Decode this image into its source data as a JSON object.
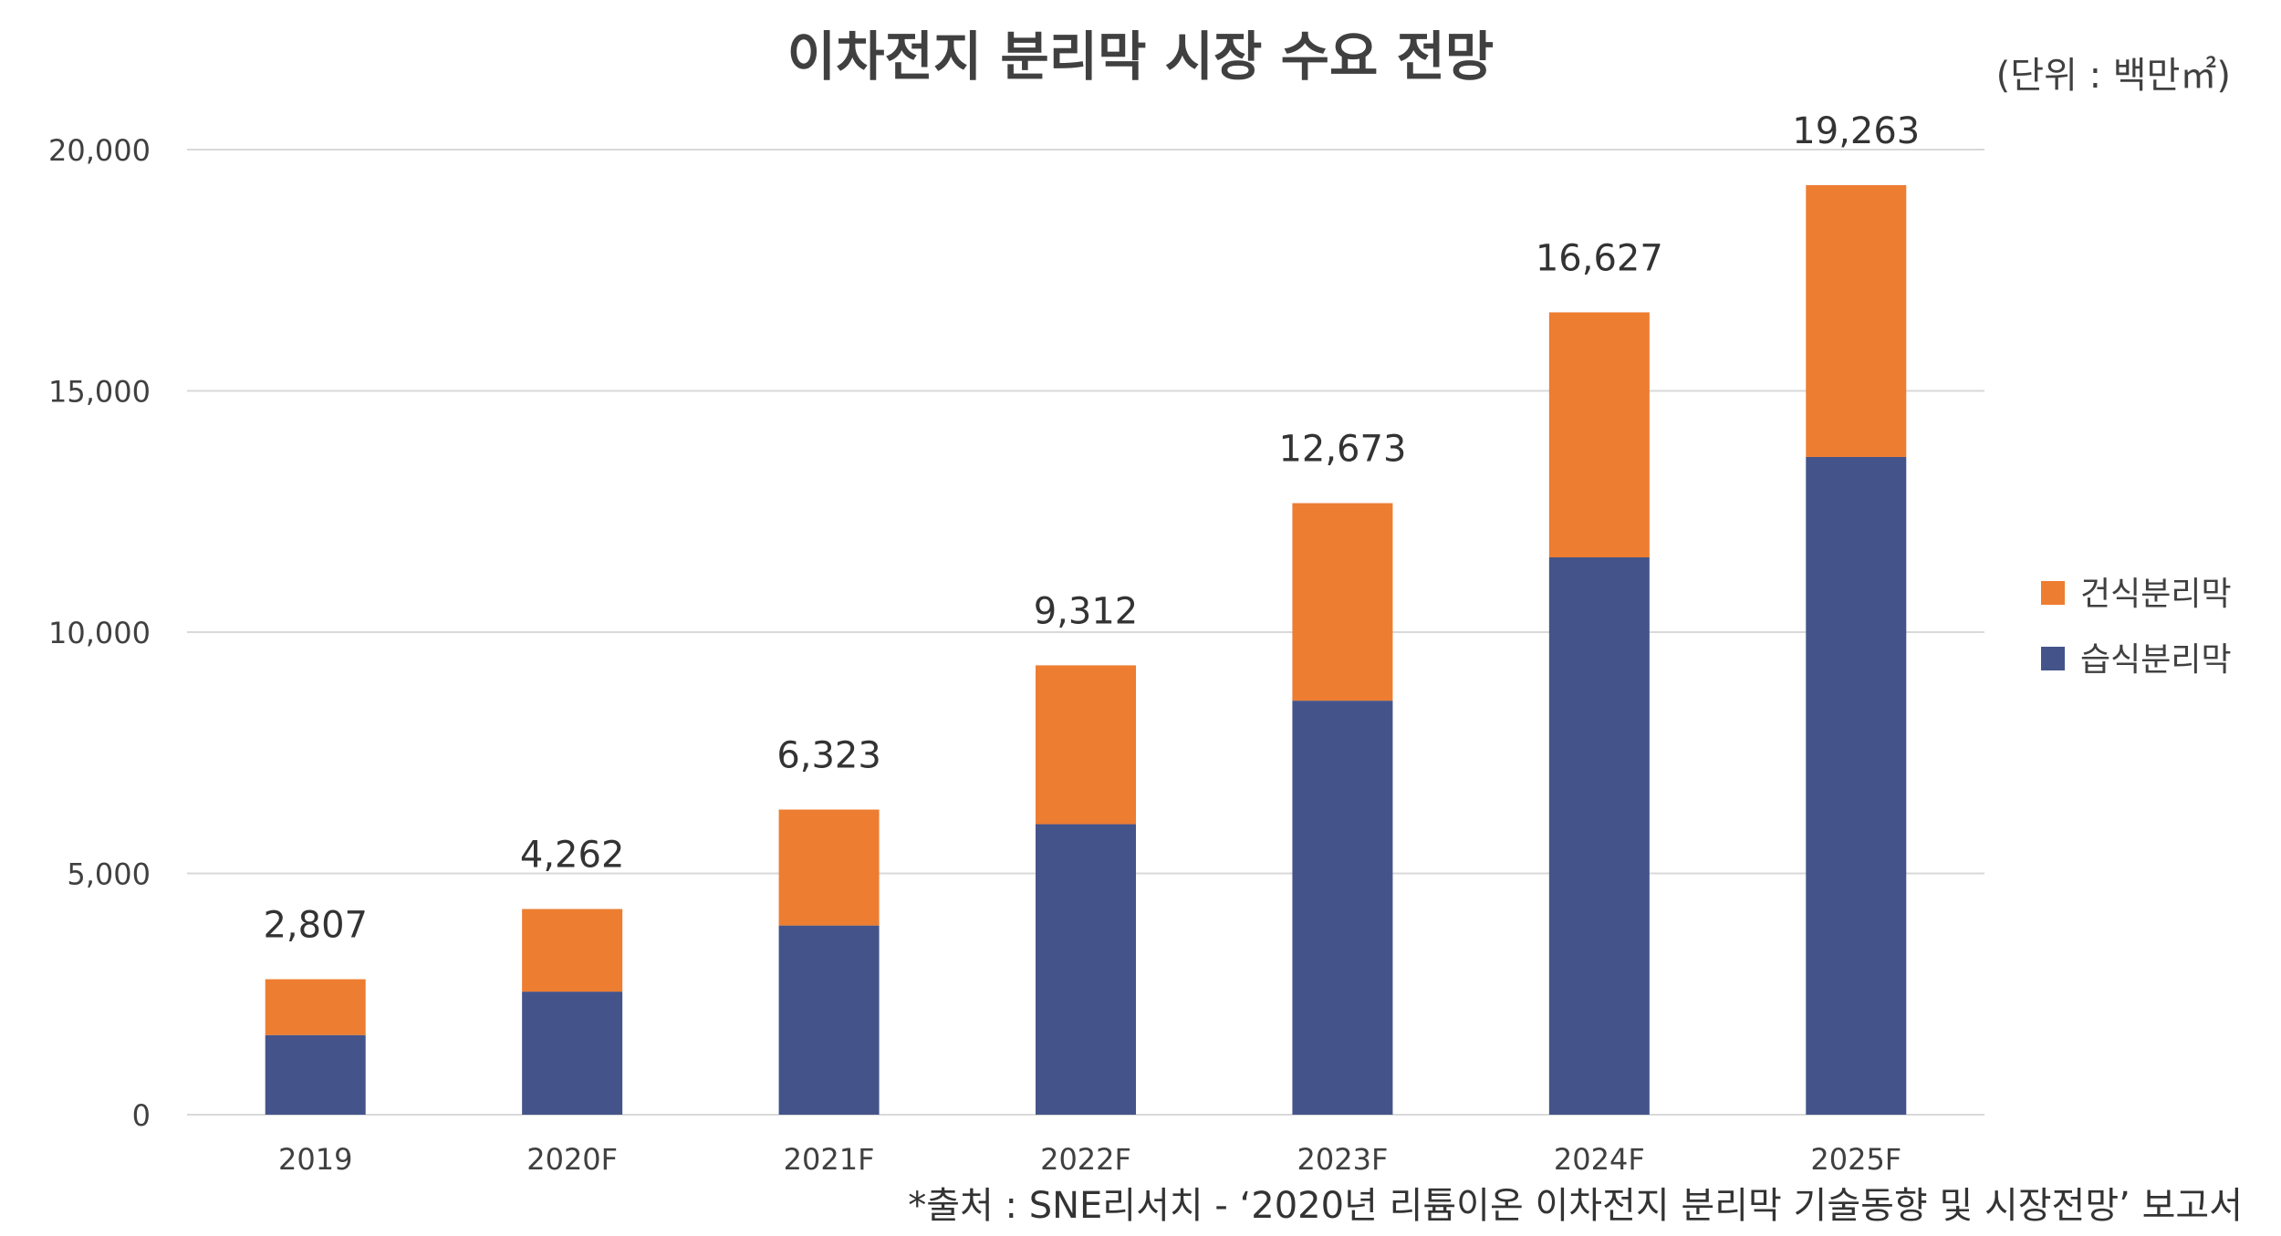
{
  "chart_data": {
    "type": "bar",
    "stacked": true,
    "title": "이차전지 분리막 시장 수요 전망",
    "unit_label": "(단위 : 백만㎡)",
    "categories": [
      "2019",
      "2020F",
      "2021F",
      "2022F",
      "2023F",
      "2024F",
      "2025F"
    ],
    "series": [
      {
        "name": "습식분리막",
        "color": "#44548a",
        "values": [
          1650,
          2550,
          3920,
          6020,
          8580,
          11550,
          13630
        ]
      },
      {
        "name": "건식분리막",
        "color": "#ed7d31",
        "values": [
          1157,
          1712,
          2403,
          3292,
          4093,
          5077,
          5633
        ]
      }
    ],
    "totals_labels": [
      "2,807",
      "4,262",
      "6,323",
      "9,312",
      "12,673",
      "16,627",
      "19,263"
    ],
    "ylim": [
      0,
      20000
    ],
    "yticks": [
      0,
      5000,
      10000,
      15000,
      20000
    ],
    "ytick_labels": [
      "0",
      "5,000",
      "10,000",
      "15,000",
      "20,000"
    ],
    "grid": true,
    "legend_position": "right",
    "legend_order": [
      "건식분리막",
      "습식분리막"
    ],
    "source": "*출처 : SNE리서치 - ‘2020년 리튬이온 이차전지 분리막 기술동향 및 시장전망’ 보고서"
  }
}
